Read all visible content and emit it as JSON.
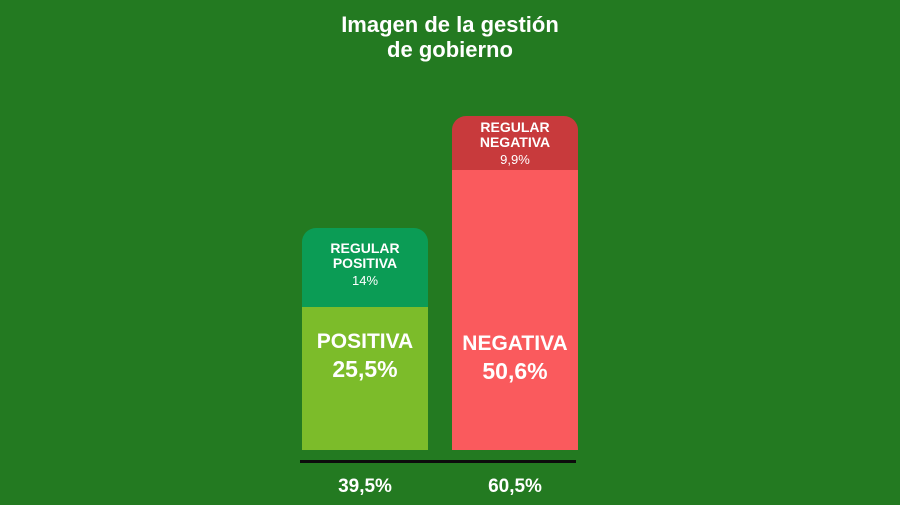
{
  "title_lines": [
    "Imagen de la gestión",
    "de gobierno"
  ],
  "chart_data": {
    "type": "bar",
    "title": "Imagen de la gestión de gobierno",
    "stacked": true,
    "categories": [
      "",
      ""
    ],
    "series": [
      {
        "name": "POSITIVA",
        "values": [
          25.5,
          0
        ],
        "labels": [
          "POSITIVA",
          ""
        ],
        "value_labels": [
          "25,5%",
          ""
        ],
        "color": "#7cbc2a"
      },
      {
        "name": "REGULAR POSITIVA",
        "values": [
          14,
          0
        ],
        "labels": [
          "REGULAR POSITIVA",
          ""
        ],
        "value_labels": [
          "14%",
          ""
        ],
        "color": "#0b9c55"
      },
      {
        "name": "NEGATIVA",
        "values": [
          0,
          50.6
        ],
        "labels": [
          "",
          "NEGATIVA"
        ],
        "value_labels": [
          "",
          "50,6%"
        ],
        "color": "#fa5a5d"
      },
      {
        "name": "REGULAR NEGATIVA",
        "values": [
          0,
          9.9
        ],
        "labels": [
          "",
          "REGULAR NEGATIVA"
        ],
        "value_labels": [
          "",
          "9,9%"
        ],
        "color": "#c83a3c"
      }
    ],
    "totals": [
      "39,5%",
      "60,5%"
    ],
    "ylim": [
      0,
      60.5
    ],
    "grid": false,
    "legend": "none"
  },
  "colors": {
    "background": "#237a21",
    "positiva": "#7cbc2a",
    "regular_positiva": "#0b9c55",
    "negativa": "#fa5a5d",
    "regular_negativa": "#c83a3c",
    "baseline": "#0c0c0c"
  }
}
